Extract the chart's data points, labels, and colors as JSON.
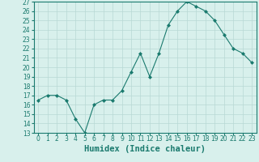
{
  "xlabel": "Humidex (Indice chaleur)",
  "ylabel": "",
  "x": [
    0,
    1,
    2,
    3,
    4,
    5,
    6,
    7,
    8,
    9,
    10,
    11,
    12,
    13,
    14,
    15,
    16,
    17,
    18,
    19,
    20,
    21,
    22,
    23
  ],
  "y": [
    16.5,
    17.0,
    17.0,
    16.5,
    14.5,
    13.0,
    16.0,
    16.5,
    16.5,
    17.5,
    19.5,
    21.5,
    19.0,
    21.5,
    24.5,
    26.0,
    27.0,
    26.5,
    26.0,
    25.0,
    23.5,
    22.0,
    21.5,
    20.5
  ],
  "line_color": "#1a7a6e",
  "marker": "D",
  "marker_size": 2.0,
  "bg_color": "#d8f0ec",
  "grid_color": "#b8d8d4",
  "ylim": [
    13,
    27
  ],
  "xlim": [
    -0.5,
    23.5
  ],
  "yticks": [
    13,
    14,
    15,
    16,
    17,
    18,
    19,
    20,
    21,
    22,
    23,
    24,
    25,
    26,
    27
  ],
  "xticks": [
    0,
    1,
    2,
    3,
    4,
    5,
    6,
    7,
    8,
    9,
    10,
    11,
    12,
    13,
    14,
    15,
    16,
    17,
    18,
    19,
    20,
    21,
    22,
    23
  ],
  "label_fontsize": 7.5,
  "tick_fontsize": 5.5
}
